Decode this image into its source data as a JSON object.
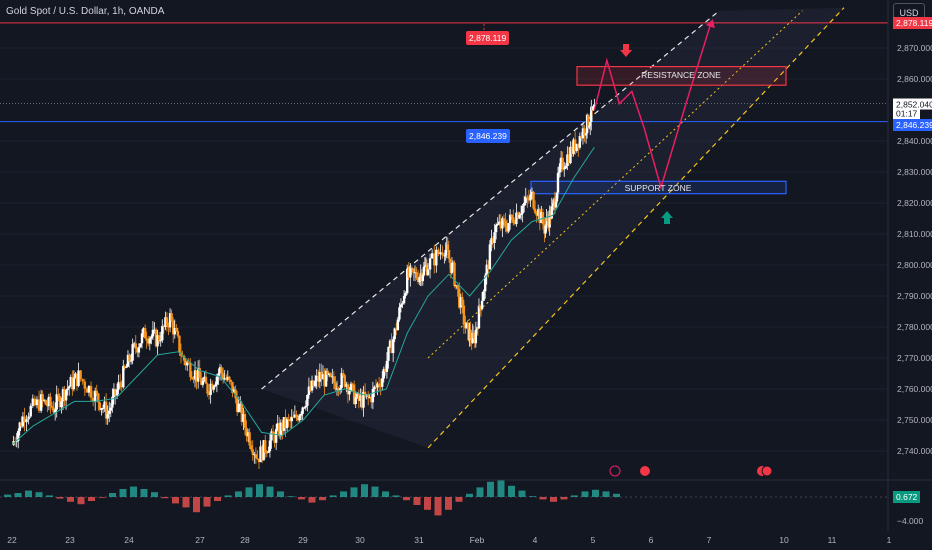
{
  "title": "Gold Spot / U.S. Dollar, 1h, OANDA",
  "currency_button": "USD",
  "price_tags": {
    "target": "2,878.119",
    "target_axis": "2,878.119",
    "current": "2,852.040",
    "countdown": "01:17",
    "support": "2,846.239",
    "support_axis": "2,846.239"
  },
  "indicator": {
    "value_label": "0.672",
    "neg_label": "−4.000",
    "neg_value": -4.0
  },
  "zones": {
    "resistance_label": "RESISTANCE ZONE",
    "support_label": "SUPPORT ZONE"
  },
  "colors": {
    "background": "#131722",
    "bull_candle": "#ffffff",
    "bear_candle": "#f7931a",
    "ma": "#26a69a",
    "target_line": "#f23645",
    "support_line": "#2962ff",
    "resistance_zone": "#f23645",
    "support_zone": "#2962ff",
    "projection": "#e91e63",
    "channel_upper": "#e8e8e8",
    "channel_lower": "#f5c518"
  },
  "chart_data": {
    "type": "candlestick",
    "symbol": "XAUUSD",
    "timeframe": "1h",
    "x_ticks": [
      "22",
      "23",
      "24",
      "27",
      "28",
      "29",
      "30",
      "31",
      "Feb",
      "4",
      "5",
      "6",
      "7",
      "10",
      "11",
      "1"
    ],
    "y_ticks": [
      "2,870.000",
      "2,860.000",
      "2,840.000",
      "2,830.000",
      "2,820.000",
      "2,810.000",
      "2,800.000",
      "2,790.000",
      "2,780.000",
      "2,770.000",
      "2,760.000",
      "2,750.000",
      "2,740.000"
    ],
    "ylim": [
      2735,
      2885
    ],
    "price_path": [
      [
        22.0,
        2742
      ],
      [
        22.3,
        2752
      ],
      [
        22.7,
        2756
      ],
      [
        23.0,
        2754
      ],
      [
        23.3,
        2760
      ],
      [
        23.6,
        2764
      ],
      [
        24.0,
        2758
      ],
      [
        24.3,
        2752
      ],
      [
        24.6,
        2762
      ],
      [
        24.9,
        2772
      ],
      [
        25.2,
        2778
      ],
      [
        25.5,
        2776
      ],
      [
        25.8,
        2783
      ],
      [
        26.1,
        2770
      ],
      [
        26.4,
        2765
      ],
      [
        26.7,
        2760
      ],
      [
        27.0,
        2766
      ],
      [
        27.3,
        2760
      ],
      [
        27.6,
        2748
      ],
      [
        27.9,
        2738
      ],
      [
        28.2,
        2743
      ],
      [
        28.5,
        2748
      ],
      [
        28.8,
        2750
      ],
      [
        29.1,
        2758
      ],
      [
        29.4,
        2764
      ],
      [
        29.7,
        2762
      ],
      [
        30.0,
        2763
      ],
      [
        30.3,
        2756
      ],
      [
        30.6,
        2757
      ],
      [
        30.9,
        2764
      ],
      [
        31.2,
        2778
      ],
      [
        31.5,
        2796
      ],
      [
        31.8,
        2797
      ],
      [
        32.0,
        2800
      ],
      [
        32.4,
        2806
      ],
      [
        32.6,
        2798
      ],
      [
        32.9,
        2780
      ],
      [
        33.1,
        2775
      ],
      [
        33.3,
        2790
      ],
      [
        33.6,
        2812
      ],
      [
        33.9,
        2813
      ],
      [
        34.2,
        2818
      ],
      [
        34.5,
        2822
      ],
      [
        34.8,
        2812
      ],
      [
        35.0,
        2818
      ],
      [
        35.2,
        2832
      ],
      [
        35.5,
        2838
      ],
      [
        35.8,
        2845
      ],
      [
        36.0,
        2850
      ]
    ],
    "moving_average": [
      [
        22.0,
        2742
      ],
      [
        22.5,
        2748
      ],
      [
        23.0,
        2752
      ],
      [
        23.5,
        2756
      ],
      [
        24.0,
        2756
      ],
      [
        24.5,
        2757
      ],
      [
        25.0,
        2764
      ],
      [
        25.5,
        2771
      ],
      [
        26.0,
        2772
      ],
      [
        26.5,
        2766
      ],
      [
        27.0,
        2764
      ],
      [
        27.5,
        2756
      ],
      [
        28.0,
        2746
      ],
      [
        28.5,
        2745
      ],
      [
        29.0,
        2750
      ],
      [
        29.5,
        2758
      ],
      [
        30.0,
        2760
      ],
      [
        30.5,
        2758
      ],
      [
        31.0,
        2760
      ],
      [
        31.5,
        2778
      ],
      [
        32.0,
        2790
      ],
      [
        32.5,
        2797
      ],
      [
        33.0,
        2790
      ],
      [
        33.5,
        2798
      ],
      [
        34.0,
        2808
      ],
      [
        34.5,
        2814
      ],
      [
        35.0,
        2816
      ],
      [
        35.5,
        2828
      ],
      [
        36.0,
        2838
      ]
    ],
    "current_price": 2852.04,
    "target_level": 2878.119,
    "support_level": 2846.239,
    "resistance_zone": [
      2858,
      2864
    ],
    "support_zone": [
      2823,
      2827
    ],
    "projection_path": [
      [
        36.0,
        2850
      ],
      [
        36.3,
        2866
      ],
      [
        36.6,
        2852
      ],
      [
        36.9,
        2856
      ],
      [
        37.2,
        2844
      ],
      [
        37.6,
        2825
      ],
      [
        38.2,
        2852
      ],
      [
        38.8,
        2878
      ]
    ],
    "channel_upper": [
      [
        28.0,
        2760
      ],
      [
        39.0,
        2882
      ]
    ],
    "channel_middle": [
      [
        32.0,
        2770
      ],
      [
        41.0,
        2882
      ]
    ],
    "channel_lower": [
      [
        32.0,
        2741
      ],
      [
        42.0,
        2883
      ]
    ],
    "indicator_histogram": [
      0.6,
      1.0,
      1.6,
      1.2,
      0.4,
      -0.4,
      -1.2,
      -1.8,
      -1.0,
      -0.2,
      1.0,
      2.0,
      2.6,
      2.0,
      1.2,
      -0.3,
      -1.6,
      -2.6,
      -3.8,
      -2.4,
      -1.0,
      0.4,
      1.4,
      2.4,
      3.2,
      2.6,
      1.4,
      0.2,
      -0.6,
      -1.4,
      -0.8,
      0.4,
      1.4,
      2.4,
      3.2,
      2.6,
      1.4,
      0.4,
      -0.8,
      -2.0,
      -3.2,
      -4.6,
      -3.2,
      -1.2,
      0.8,
      2.4,
      3.8,
      4.2,
      2.8,
      1.6,
      0.2,
      -0.6,
      -1.2,
      -0.6,
      0.4,
      1.4,
      1.8,
      1.4,
      0.8
    ],
    "indicator_value": 0.672
  }
}
